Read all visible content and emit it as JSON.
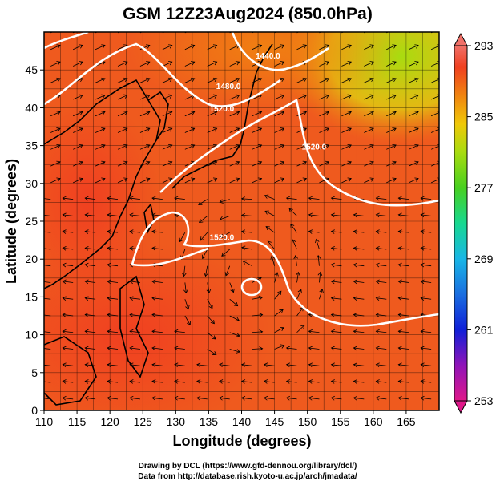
{
  "chart_data": {
    "type": "heatmap",
    "title": "GSM 12Z23Aug2024 (850.0hPa)",
    "xlabel": "Longitude (degrees)",
    "ylabel": "Latitude  (degrees)",
    "xlim": [
      110,
      170
    ],
    "ylim": [
      0,
      50
    ],
    "x_ticks": [
      110,
      115,
      120,
      125,
      130,
      135,
      140,
      145,
      150,
      155,
      160,
      165
    ],
    "y_ticks": [
      0,
      5,
      10,
      15,
      20,
      25,
      30,
      35,
      40,
      45
    ],
    "grid": true,
    "colorbar": {
      "min": 253,
      "max": 293,
      "labels": [
        293,
        285,
        277,
        269,
        261,
        253
      ],
      "colors": [
        "#e0188a",
        "#6a10c8",
        "#1020d8",
        "#1a6ee0",
        "#18b6e6",
        "#18d890",
        "#48d020",
        "#a8dc10",
        "#f0c808",
        "#f08410",
        "#f04020",
        "#f07068"
      ]
    },
    "contours": [
      {
        "label": "1440.0",
        "lon": 144,
        "lat": 46.5
      },
      {
        "label": "1480.0",
        "lon": 138,
        "lat": 42.5
      },
      {
        "label": "1520.0",
        "lon": 137,
        "lat": 39.5
      },
      {
        "label": "1520.0",
        "lon": 151,
        "lat": 34.5
      },
      {
        "label": "1520.0",
        "lon": 137,
        "lat": 22.5
      }
    ],
    "credits": [
      "Drawing by DCL (https://www.gfd-dennou.org/library/dcl/)",
      "Data from http://database.rish.kyoto-u.ac.jp/arch/jmadata/"
    ]
  }
}
